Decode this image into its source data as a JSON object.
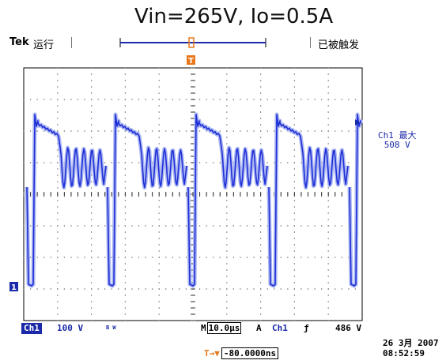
{
  "title": "Vin=265V, Io=0.5A",
  "header": {
    "brand": "Tek",
    "run_status": "运行",
    "trigger_status": "已被触发"
  },
  "waveform": {
    "channel": "Ch1",
    "color": "#1f2fd6",
    "ghost_color": "#aab6f2"
  },
  "colors": {
    "grid_border": "#000000",
    "grid_dots": "#555555",
    "trigger_marker": "#e8781a",
    "channel_accent": "#1a2aa8"
  },
  "markers": {
    "trigger_t": "T",
    "ch1_ground": "1"
  },
  "measurement": {
    "label": "Ch1 最大",
    "value": "508 V"
  },
  "statusbar": {
    "channel": "Ch1",
    "volts_per_div": "100 V",
    "bw_icon": "B W",
    "time_prefix": "M",
    "time_per_div": "10.0μs",
    "trigger_mode": "A",
    "trigger_source": "Ch1",
    "trigger_slope": "ƒ",
    "trigger_level": "486 V"
  },
  "datetime": {
    "date": "26 3月  2007",
    "time": "08:52:59"
  },
  "trigger_offset": {
    "icon": "T→▼",
    "value": "-80.0000ns"
  }
}
